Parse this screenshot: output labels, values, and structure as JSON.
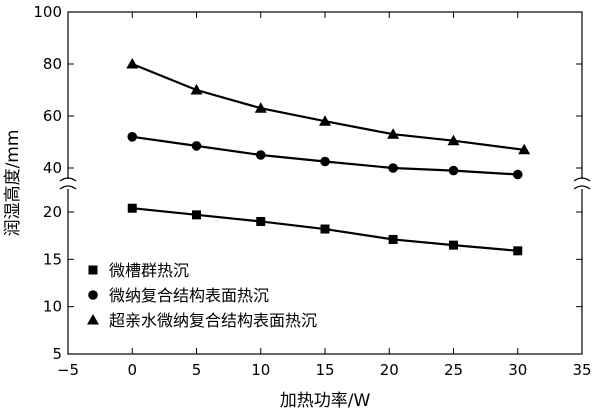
{
  "chart_data": {
    "type": "line",
    "xlabel": "加热功率/W",
    "ylabel": "润湿高度/mm",
    "xlim": [
      -5,
      35
    ],
    "xticks": [
      -5,
      0,
      5,
      10,
      15,
      20,
      25,
      30,
      35
    ],
    "xtick_labels": [
      "−5",
      "0",
      "5",
      "10",
      "15",
      "20",
      "25",
      "30",
      "35"
    ],
    "y_axis_break": true,
    "y_upper_range": [
      40,
      100
    ],
    "y_upper_ticks": [
      40,
      60,
      80,
      100
    ],
    "y_lower_range": [
      5,
      20
    ],
    "y_lower_ticks": [
      5,
      10,
      15,
      20
    ],
    "grid": false,
    "legend_position": "bottom-left",
    "series": [
      {
        "name": "微槽群热沉",
        "marker": "square",
        "segment": "lower",
        "x": [
          0,
          5,
          10,
          15,
          20.3,
          25,
          30
        ],
        "y": [
          20.4,
          19.7,
          19.0,
          18.2,
          17.1,
          16.5,
          15.9
        ]
      },
      {
        "name": "微纳复合结构表面热沉",
        "marker": "circle",
        "segment": "upper",
        "x": [
          0,
          5,
          10,
          15,
          20.3,
          25,
          30
        ],
        "y": [
          52,
          48.5,
          45,
          42.5,
          40,
          39,
          37.5
        ]
      },
      {
        "name": "超亲水微纳复合结构表面热沉",
        "marker": "triangle",
        "segment": "upper",
        "x": [
          0,
          5,
          10,
          15,
          20.3,
          25,
          30.5
        ],
        "y": [
          80,
          70,
          63,
          58,
          53,
          50.5,
          47
        ]
      }
    ]
  }
}
